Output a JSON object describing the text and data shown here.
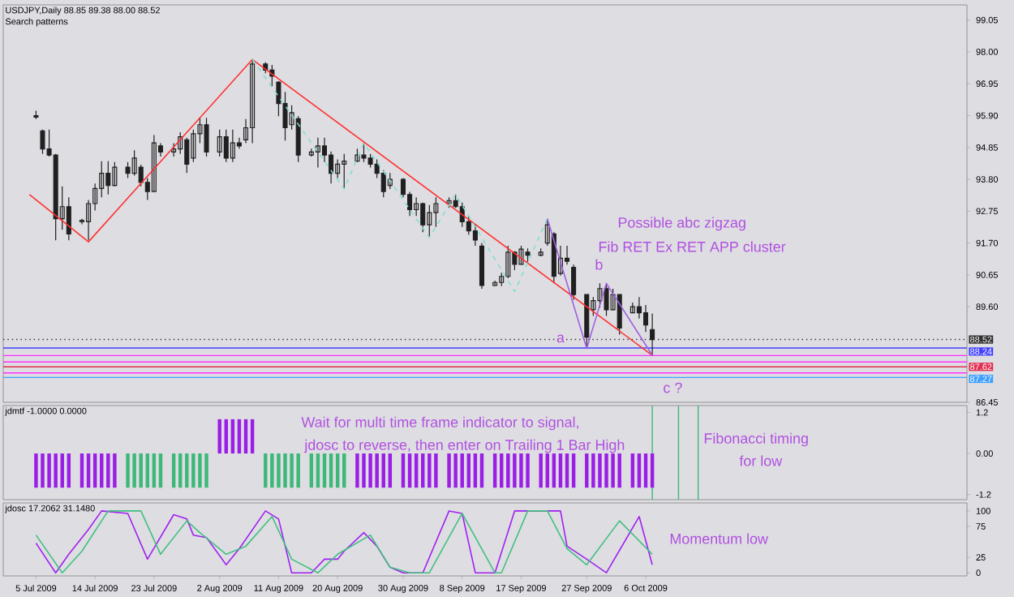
{
  "chart_data": [
    {
      "type": "candlestick",
      "title": "USDJPY,Daily 88.85 89.38 88.00 88.52",
      "subtitle": "Search patterns",
      "color": "#202020",
      "x": [
        "2009-07-05",
        "2009-07-06",
        "2009-07-07",
        "2009-07-08",
        "2009-07-09",
        "2009-07-10",
        "2009-07-12",
        "2009-07-13",
        "2009-07-14",
        "2009-07-15",
        "2009-07-16",
        "2009-07-17",
        "2009-07-19",
        "2009-07-20",
        "2009-07-21",
        "2009-07-22",
        "2009-07-23",
        "2009-07-24",
        "2009-07-26",
        "2009-07-27",
        "2009-07-28",
        "2009-07-29",
        "2009-07-30",
        "2009-07-31",
        "2009-08-02",
        "2009-08-03",
        "2009-08-04",
        "2009-08-05",
        "2009-08-06",
        "2009-08-07",
        "2009-08-09",
        "2009-08-10",
        "2009-08-11",
        "2009-08-12",
        "2009-08-13",
        "2009-08-14",
        "2009-08-16",
        "2009-08-17",
        "2009-08-18",
        "2009-08-19",
        "2009-08-20",
        "2009-08-21",
        "2009-08-23",
        "2009-08-24",
        "2009-08-25",
        "2009-08-26",
        "2009-08-27",
        "2009-08-28",
        "2009-08-30",
        "2009-08-31",
        "2009-09-01",
        "2009-09-02",
        "2009-09-03",
        "2009-09-04",
        "2009-09-06",
        "2009-09-07",
        "2009-09-08",
        "2009-09-09",
        "2009-09-10",
        "2009-09-11",
        "2009-09-13",
        "2009-09-14",
        "2009-09-15",
        "2009-09-16",
        "2009-09-17",
        "2009-09-18",
        "2009-09-20",
        "2009-09-21",
        "2009-09-22",
        "2009-09-23",
        "2009-09-24",
        "2009-09-25",
        "2009-09-27",
        "2009-09-28",
        "2009-09-29",
        "2009-09-30",
        "2009-10-01",
        "2009-10-02",
        "2009-10-04",
        "2009-10-05",
        "2009-10-06",
        "2009-10-07"
      ],
      "ohlc": [
        [
          95.9,
          96.06,
          95.79,
          95.85
        ],
        [
          95.4,
          95.44,
          94.64,
          94.8
        ],
        [
          94.8,
          95.44,
          94.55,
          94.6
        ],
        [
          94.6,
          94.64,
          91.79,
          92.5
        ],
        [
          92.5,
          93.57,
          92.14,
          92.9
        ],
        [
          92.9,
          93.21,
          91.79,
          92.0
        ],
        [
          92.4,
          92.5,
          92.32,
          92.45
        ],
        [
          92.4,
          93.12,
          91.79,
          93.0
        ],
        [
          93.0,
          93.66,
          92.77,
          93.5
        ],
        [
          93.5,
          94.4,
          93.21,
          94.0
        ],
        [
          94.0,
          94.4,
          93.3,
          93.6
        ],
        [
          93.6,
          94.37,
          93.57,
          94.2
        ],
        [
          94.2,
          94.37,
          93.84,
          94.0
        ],
        [
          94.0,
          94.76,
          93.92,
          94.5
        ],
        [
          94.2,
          94.28,
          93.57,
          93.7
        ],
        [
          93.7,
          93.84,
          93.12,
          93.4
        ],
        [
          93.4,
          95.26,
          93.39,
          95.0
        ],
        [
          94.9,
          94.99,
          94.55,
          94.7
        ],
        [
          94.7,
          94.99,
          94.55,
          94.8
        ],
        [
          94.8,
          95.35,
          94.64,
          95.2
        ],
        [
          95.1,
          95.17,
          94.01,
          94.3
        ],
        [
          94.5,
          95.44,
          94.37,
          95.3
        ],
        [
          95.3,
          95.83,
          94.99,
          95.6
        ],
        [
          95.6,
          95.83,
          94.55,
          94.7
        ],
        [
          94.7,
          95.44,
          94.55,
          95.2
        ],
        [
          95.2,
          95.44,
          94.37,
          94.5
        ],
        [
          94.5,
          95.44,
          94.37,
          95.0
        ],
        [
          95.0,
          95.17,
          94.81,
          94.9
        ],
        [
          95.1,
          95.79,
          94.99,
          95.5
        ],
        [
          95.5,
          97.75,
          94.99,
          97.6
        ],
        [
          97.6,
          97.66,
          97.3,
          97.4
        ],
        [
          97.4,
          97.57,
          96.86,
          97.2
        ],
        [
          97.0,
          97.04,
          95.88,
          96.3
        ],
        [
          96.3,
          96.68,
          95.08,
          95.5
        ],
        [
          95.6,
          96.24,
          95.44,
          96.0
        ],
        [
          95.8,
          95.88,
          94.37,
          94.6
        ],
        [
          94.6,
          94.81,
          94.55,
          94.7
        ],
        [
          94.7,
          95.17,
          94.19,
          94.9
        ],
        [
          94.9,
          95.17,
          94.37,
          94.6
        ],
        [
          94.6,
          94.72,
          93.66,
          94.0
        ],
        [
          94.0,
          94.46,
          93.84,
          94.3
        ],
        [
          94.3,
          94.64,
          93.48,
          94.4
        ],
        [
          94.4,
          94.81,
          94.37,
          94.6
        ],
        [
          94.6,
          94.99,
          94.37,
          94.5
        ],
        [
          94.5,
          94.64,
          94.19,
          94.3
        ],
        [
          94.3,
          94.46,
          93.84,
          94.0
        ],
        [
          94.0,
          94.1,
          93.21,
          93.4
        ],
        [
          93.6,
          94.01,
          93.48,
          93.8
        ],
        [
          93.8,
          93.84,
          93.21,
          93.3
        ],
        [
          93.3,
          93.39,
          92.59,
          92.8
        ],
        [
          92.8,
          93.21,
          92.59,
          93.0
        ],
        [
          93.0,
          93.03,
          92.06,
          92.3
        ],
        [
          92.3,
          92.95,
          91.88,
          92.7
        ],
        [
          92.7,
          93.21,
          92.23,
          93.0
        ],
        [
          93.0,
          93.21,
          92.86,
          93.1
        ],
        [
          93.1,
          93.3,
          92.86,
          92.9
        ],
        [
          92.9,
          93.03,
          92.23,
          92.4
        ],
        [
          92.4,
          92.59,
          91.97,
          92.1
        ],
        [
          92.1,
          92.32,
          91.61,
          91.8
        ],
        [
          91.6,
          91.7,
          90.19,
          90.3
        ],
        [
          90.3,
          90.46,
          90.28,
          90.4
        ],
        [
          90.4,
          90.72,
          90.28,
          90.6
        ],
        [
          90.6,
          91.61,
          90.54,
          91.4
        ],
        [
          91.4,
          91.43,
          90.81,
          91.0
        ],
        [
          91.0,
          91.61,
          90.99,
          91.5
        ],
        [
          91.4,
          91.52,
          91.08,
          91.3
        ],
        [
          91.3,
          91.52,
          91.26,
          91.4
        ],
        [
          91.7,
          92.5,
          91.61,
          92.3
        ],
        [
          92.0,
          92.06,
          90.37,
          90.6
        ],
        [
          90.7,
          91.61,
          90.63,
          91.2
        ],
        [
          91.2,
          91.61,
          90.99,
          91.1
        ],
        [
          90.9,
          90.99,
          89.83,
          90.0
        ],
        [
          90.0,
          90.01,
          88.23,
          88.6
        ],
        [
          89.5,
          89.92,
          89.3,
          89.8
        ],
        [
          89.8,
          90.37,
          89.57,
          90.2
        ],
        [
          90.2,
          90.37,
          89.3,
          89.5
        ],
        [
          89.5,
          90.19,
          89.48,
          90.0
        ],
        [
          90.0,
          90.01,
          88.68,
          88.9
        ],
        [
          89.4,
          89.74,
          89.39,
          89.6
        ],
        [
          89.6,
          89.92,
          89.21,
          89.4
        ],
        [
          89.4,
          89.66,
          88.77,
          89.0
        ],
        [
          88.85,
          89.38,
          88.0,
          88.52
        ]
      ],
      "series": [
        {
          "type": "line",
          "color": "#ff3030",
          "line_style": "solid",
          "x": [
            "2009-07-04",
            "2009-07-13",
            "2009-08-07",
            "2009-10-07"
          ],
          "values": [
            93.3,
            91.74,
            97.75,
            88.0
          ]
        },
        {
          "type": "line",
          "color": "#80e0d0",
          "line_style": "dashed",
          "x": [
            "2009-08-07",
            "2009-08-21",
            "2009-08-24",
            "2009-09-03",
            "2009-09-07",
            "2009-09-16",
            "2009-09-21"
          ],
          "values": [
            97.75,
            93.48,
            94.99,
            91.88,
            93.3,
            90.1,
            92.5
          ]
        },
        {
          "type": "line",
          "color": "#a060e0",
          "line_style": "solid",
          "x": [
            "2009-09-21",
            "2009-09-27",
            "2009-09-30",
            "2009-10-07"
          ],
          "values": [
            92.5,
            88.23,
            90.37,
            88.0
          ]
        }
      ],
      "xlim": [
        "2009-06-30",
        "2009-11-24"
      ],
      "ylim": [
        86.45,
        99.55
      ],
      "yticks": [
        {
          "value": 99.05,
          "label": "99.05"
        },
        {
          "value": 98.0,
          "label": "98.00"
        },
        {
          "value": 96.95,
          "label": "96.95"
        },
        {
          "value": 95.9,
          "label": "95.90"
        },
        {
          "value": 94.85,
          "label": "94.85"
        },
        {
          "value": 93.8,
          "label": "93.80"
        },
        {
          "value": 92.75,
          "label": "92.75"
        },
        {
          "value": 91.7,
          "label": "91.70"
        },
        {
          "value": 90.65,
          "label": "90.65"
        },
        {
          "value": 89.6,
          "label": "89.60"
        },
        {
          "value": 86.45,
          "label": "86.45"
        }
      ],
      "tick_labels": "y",
      "ref_lines": [
        {
          "axis": "y",
          "value": 88.52,
          "label": "88.52",
          "color": "#303030",
          "line_style": "dotted"
        },
        {
          "axis": "y",
          "value": 88.24,
          "label": "88.24",
          "color": "#4040ff",
          "line_style": "solid"
        },
        {
          "axis": "y",
          "value": 87.99,
          "color": "#ff30ff",
          "line_style": "solid"
        },
        {
          "axis": "y",
          "value": 87.78,
          "color": "#ff30ff",
          "line_style": "solid"
        },
        {
          "axis": "y",
          "value": 87.62,
          "label": "87.62",
          "color": "#e03050",
          "line_style": "solid"
        },
        {
          "axis": "y",
          "value": 87.42,
          "color": "#ff30ff",
          "line_style": "solid"
        },
        {
          "axis": "y",
          "value": 87.27,
          "label": "87.27",
          "color": "#40a0ff",
          "line_style": "solid"
        }
      ],
      "annotations": [
        "Possible abc zigzag",
        "Fib RET Ex RET APP cluster",
        {
          "text": "a",
          "x": "2009-09-23",
          "y": 88.55
        },
        "b",
        "c ?"
      ]
    },
    {
      "type": "bar",
      "title": "jdmtf -1.0000 0.0000",
      "x": [
        "2009-07-05",
        "2009-07-06",
        "2009-07-07",
        "2009-07-08",
        "2009-07-09",
        "2009-07-10",
        "2009-07-12",
        "2009-07-13",
        "2009-07-14",
        "2009-07-15",
        "2009-07-16",
        "2009-07-17",
        "2009-07-19",
        "2009-07-20",
        "2009-07-21",
        "2009-07-22",
        "2009-07-23",
        "2009-07-24",
        "2009-07-26",
        "2009-07-27",
        "2009-07-28",
        "2009-07-29",
        "2009-07-30",
        "2009-07-31",
        "2009-08-02",
        "2009-08-03",
        "2009-08-04",
        "2009-08-05",
        "2009-08-06",
        "2009-08-07",
        "2009-08-09",
        "2009-08-10",
        "2009-08-11",
        "2009-08-12",
        "2009-08-13",
        "2009-08-14",
        "2009-08-16",
        "2009-08-17",
        "2009-08-18",
        "2009-08-19",
        "2009-08-20",
        "2009-08-21",
        "2009-08-23",
        "2009-08-24",
        "2009-08-25",
        "2009-08-26",
        "2009-08-27",
        "2009-08-28",
        "2009-08-30",
        "2009-08-31",
        "2009-09-01",
        "2009-09-02",
        "2009-09-03",
        "2009-09-04",
        "2009-09-06",
        "2009-09-07",
        "2009-09-08",
        "2009-09-09",
        "2009-09-10",
        "2009-09-11",
        "2009-09-13",
        "2009-09-14",
        "2009-09-15",
        "2009-09-16",
        "2009-09-17",
        "2009-09-18",
        "2009-09-20",
        "2009-09-21",
        "2009-09-22",
        "2009-09-23",
        "2009-09-24",
        "2009-09-25",
        "2009-09-27",
        "2009-09-28",
        "2009-09-29",
        "2009-09-30",
        "2009-10-01",
        "2009-10-02",
        "2009-10-04",
        "2009-10-05",
        "2009-10-06",
        "2009-10-07"
      ],
      "series": [
        {
          "color": "#9a1ee6",
          "values": [
            -1,
            -1,
            -1,
            -1,
            -1,
            -1,
            -1,
            -1,
            -1,
            -1,
            -1,
            -1,
            null,
            null,
            null,
            null,
            null,
            null,
            null,
            null,
            null,
            null,
            null,
            null,
            1,
            1,
            1,
            1,
            1,
            1,
            null,
            null,
            null,
            null,
            null,
            null,
            null,
            null,
            null,
            null,
            null,
            null,
            -1,
            -1,
            -1,
            -1,
            -1,
            -1,
            -1,
            -1,
            -1,
            -1,
            -1,
            -1,
            -1,
            -1,
            -1,
            -1,
            -1,
            -1,
            -1,
            -1,
            -1,
            -1,
            -1,
            -1,
            -1,
            -1,
            -1,
            -1,
            -1,
            -1,
            -1,
            -1,
            -1,
            -1,
            -1,
            -1,
            -1,
            -1,
            -1,
            -1
          ]
        },
        {
          "color": "#3cb878",
          "values": [
            null,
            null,
            null,
            null,
            null,
            null,
            null,
            null,
            null,
            null,
            null,
            null,
            -1,
            -1,
            -1,
            -1,
            -1,
            -1,
            -1,
            -1,
            -1,
            -1,
            -1,
            -1,
            null,
            null,
            null,
            null,
            null,
            null,
            -1,
            -1,
            -1,
            -1,
            -1,
            -1,
            -1,
            -1,
            -1,
            -1,
            -1,
            -1,
            null,
            null,
            null,
            null,
            null,
            null,
            null,
            null,
            null,
            null,
            null,
            null,
            null,
            null,
            null,
            null,
            null,
            null,
            null,
            null,
            null,
            null,
            null,
            null,
            null,
            null,
            null,
            null,
            null,
            null,
            null,
            null,
            null,
            null,
            null,
            null,
            null,
            null,
            null,
            null
          ]
        }
      ],
      "xlim": [
        "2009-06-30",
        "2009-11-24"
      ],
      "ylim": [
        -1.35,
        1.4
      ],
      "yticks": [
        {
          "value": 1.2,
          "label": "1.2"
        },
        {
          "value": 0,
          "label": "0.00"
        },
        {
          "value": -1.2,
          "label": "-1.2"
        }
      ],
      "tick_labels": "y",
      "ref_lines": [
        {
          "axis": "x",
          "value": "2009-10-07",
          "color": "#3cb878"
        },
        {
          "axis": "x",
          "value": "2009-10-11",
          "color": "#3cb878"
        },
        {
          "axis": "x",
          "value": "2009-10-14",
          "color": "#3cb878"
        }
      ],
      "annotations": [
        "Wait for multi time frame indicator to signal,",
        "jdosc to reverse, then enter on Trailing 1 Bar High",
        "Fibonacci timing",
        "for low"
      ]
    },
    {
      "type": "line",
      "title": "jdosc 17.2062 31.1480",
      "series": [
        {
          "color": "#a020f0",
          "x": [
            "2009-07-05",
            "2009-07-08",
            "2009-07-10",
            "2009-07-13",
            "2009-07-15",
            "2009-07-19",
            "2009-07-22",
            "2009-07-26",
            "2009-07-28",
            "2009-07-29",
            "2009-07-31",
            "2009-08-03",
            "2009-08-05",
            "2009-08-09",
            "2009-08-11",
            "2009-08-13",
            "2009-08-16",
            "2009-08-18",
            "2009-08-20",
            "2009-08-21",
            "2009-08-24",
            "2009-08-26",
            "2009-08-28",
            "2009-08-30",
            "2009-09-02",
            "2009-09-06",
            "2009-09-08",
            "2009-09-10",
            "2009-09-13",
            "2009-09-16",
            "2009-09-18",
            "2009-09-21",
            "2009-09-23",
            "2009-09-24",
            "2009-09-27",
            "2009-09-30",
            "2009-10-05",
            "2009-10-07"
          ],
          "values": [
            48,
            0,
            30,
            70,
            100,
            96,
            22,
            94,
            87,
            61,
            57,
            13,
            39,
            100,
            87,
            0,
            0,
            22,
            22,
            35,
            65,
            43,
            9,
            0,
            0,
            100,
            96,
            0,
            0,
            100,
            100,
            100,
            100,
            43,
            22,
            0,
            91,
            13
          ]
        },
        {
          "color": "#40c080",
          "x": [
            "2009-07-05",
            "2009-07-09",
            "2009-07-12",
            "2009-07-16",
            "2009-07-21",
            "2009-07-24",
            "2009-07-28",
            "2009-07-30",
            "2009-08-03",
            "2009-08-06",
            "2009-08-10",
            "2009-08-13",
            "2009-08-17",
            "2009-08-20",
            "2009-08-25",
            "2009-08-28",
            "2009-08-31",
            "2009-09-03",
            "2009-09-08",
            "2009-09-13",
            "2009-09-14",
            "2009-09-18",
            "2009-09-20",
            "2009-09-21",
            "2009-09-24",
            "2009-09-27",
            "2009-10-02",
            "2009-10-07"
          ],
          "values": [
            61,
            0,
            35,
            100,
            100,
            30,
            84,
            65,
            30,
            43,
            91,
            22,
            0,
            30,
            61,
            9,
            0,
            0,
            96,
            0,
            0,
            100,
            100,
            100,
            39,
            13,
            84,
            30
          ]
        }
      ],
      "xlim": [
        "2009-06-30",
        "2009-11-24"
      ],
      "ylim": [
        -5,
        113
      ],
      "xticks": [
        {
          "value": "2009-07-05",
          "label": "5 Jul 2009"
        },
        {
          "value": "2009-07-14",
          "label": "14 Jul 2009"
        },
        {
          "value": "2009-07-23",
          "label": "23 Jul 2009"
        },
        {
          "value": "2009-08-02",
          "label": "2 Aug 2009"
        },
        {
          "value": "2009-08-11",
          "label": "11 Aug 2009"
        },
        {
          "value": "2009-08-20",
          "label": "20 Aug 2009"
        },
        {
          "value": "2009-08-30",
          "label": "30 Aug 2009"
        },
        {
          "value": "2009-09-08",
          "label": "8 Sep 2009"
        },
        {
          "value": "2009-09-17",
          "label": "17 Sep 2009"
        },
        {
          "value": "2009-09-27",
          "label": "27 Sep 2009"
        },
        {
          "value": "2009-10-06",
          "label": "6 Oct 2009"
        }
      ],
      "yticks": [
        100,
        75,
        25,
        0
      ],
      "annotations": [
        "Momentum low"
      ]
    }
  ]
}
